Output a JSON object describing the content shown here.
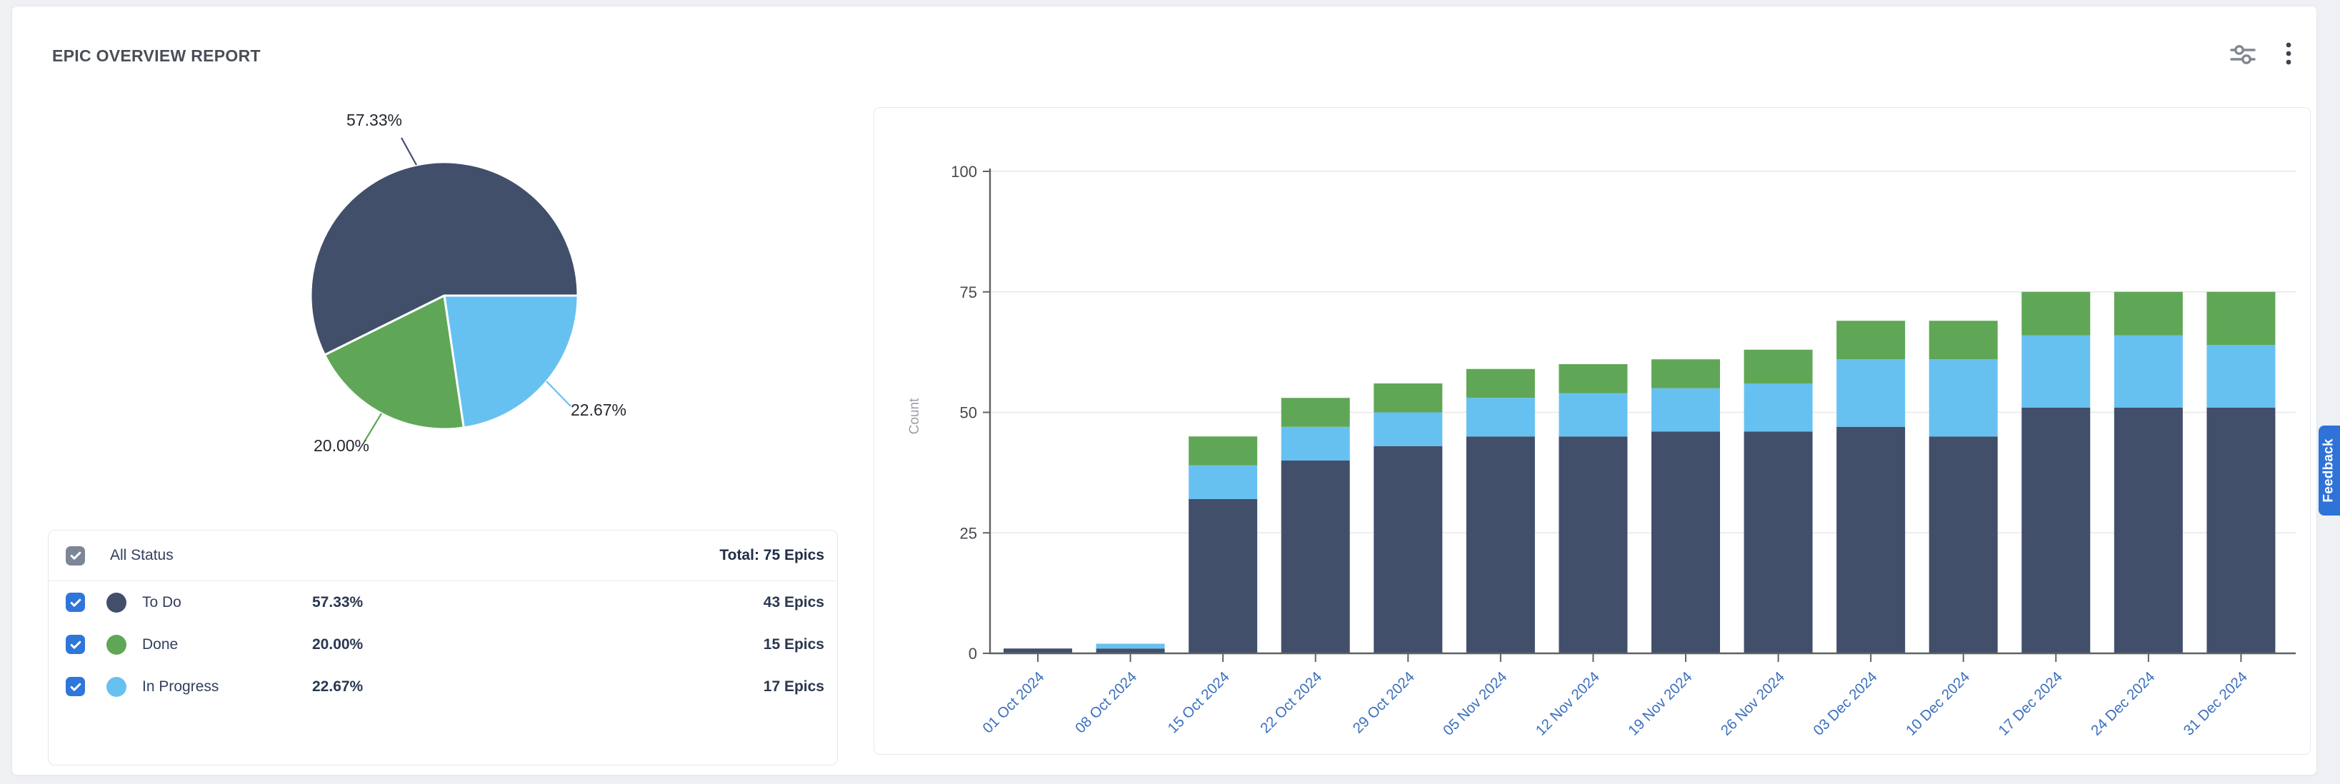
{
  "report": {
    "title": "EPIC OVERVIEW REPORT"
  },
  "toolbar": {
    "settings_icon": "filter-sliders",
    "more_icon": "kebab-menu"
  },
  "colors": {
    "to_do": "#414F6B",
    "done": "#5FA756",
    "in_progress": "#67C1F0",
    "axis": "#5E6266",
    "grid": "#E8E8E8",
    "y_tick_text": "#46494E",
    "x_tick_text": "#3A70BD",
    "count_label": "#9BA1A8",
    "checkbox_blue": "#2E76D9",
    "checkbox_gray": "#7D8697",
    "feedback": "#2F72D8"
  },
  "pie_labels": {
    "to_do": "57.33%",
    "done": "20.00%",
    "in_progress": "22.67%"
  },
  "legend": {
    "header": {
      "label": "All Status",
      "total": "Total: 75 Epics"
    },
    "rows": [
      {
        "label": "To Do",
        "pct": "57.33%",
        "count": "43 Epics",
        "color_key": "to_do"
      },
      {
        "label": "Done",
        "pct": "20.00%",
        "count": "15 Epics",
        "color_key": "done"
      },
      {
        "label": "In Progress",
        "pct": "22.67%",
        "count": "17 Epics",
        "color_key": "in_progress"
      }
    ]
  },
  "feedback": {
    "label": "Feedback"
  },
  "chart_data": [
    {
      "type": "pie",
      "title": "",
      "total_epics": 75,
      "legend_position": "table-bottom-left",
      "series": [
        {
          "name": "To Do",
          "value": 43,
          "percent": 57.33,
          "color_key": "to_do"
        },
        {
          "name": "Done",
          "value": 15,
          "percent": 20.0,
          "color_key": "done"
        },
        {
          "name": "In Progress",
          "value": 17,
          "percent": 22.67,
          "color_key": "in_progress"
        }
      ]
    },
    {
      "type": "bar",
      "stacked": true,
      "title": "",
      "xlabel": "",
      "ylabel": "Count",
      "ylim": [
        0,
        100
      ],
      "yticks": [
        0,
        25,
        50,
        75,
        100
      ],
      "grid": true,
      "categories": [
        "01 Oct 2024",
        "08 Oct 2024",
        "15 Oct 2024",
        "22 Oct 2024",
        "29 Oct 2024",
        "05 Nov 2024",
        "12 Nov 2024",
        "19 Nov 2024",
        "26 Nov 2024",
        "03 Dec 2024",
        "10 Dec 2024",
        "17 Dec 2024",
        "24 Dec 2024",
        "31 Dec 2024"
      ],
      "series": [
        {
          "name": "To Do",
          "color_key": "to_do",
          "values": [
            1,
            1,
            32,
            40,
            43,
            45,
            45,
            46,
            46,
            47,
            45,
            51,
            51,
            51
          ]
        },
        {
          "name": "In Progress",
          "color_key": "in_progress",
          "values": [
            0,
            1,
            7,
            7,
            7,
            8,
            9,
            9,
            10,
            14,
            16,
            15,
            15,
            13
          ]
        },
        {
          "name": "Done",
          "color_key": "done",
          "values": [
            0,
            0,
            6,
            6,
            6,
            6,
            6,
            6,
            7,
            8,
            8,
            9,
            9,
            11
          ]
        }
      ],
      "totals": [
        1,
        2,
        45,
        53,
        56,
        59,
        60,
        61,
        63,
        69,
        69,
        75,
        75,
        75
      ]
    }
  ]
}
